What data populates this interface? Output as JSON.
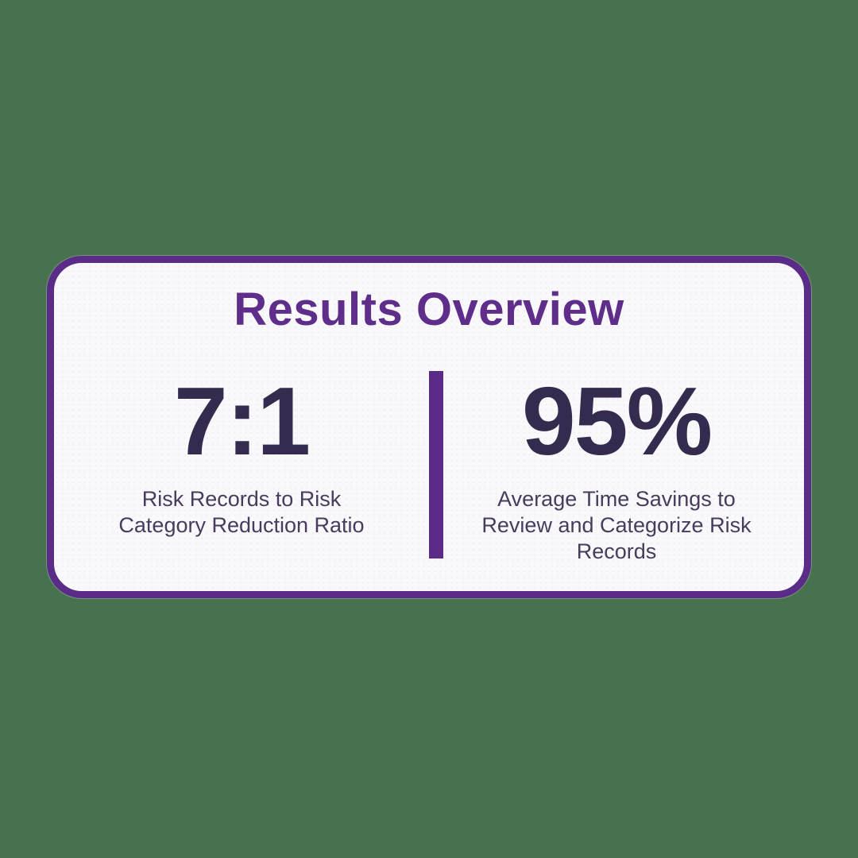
{
  "colors": {
    "bg-green": "#47714F",
    "purple": "#5B2C87",
    "title-purple": "#5F2E8A",
    "value-navy": "#342B4E",
    "label-navy": "#473C5C",
    "card-bg": "#F9F8FB"
  },
  "card": {
    "title": "Results Overview",
    "stats": [
      {
        "value": "7:1",
        "label": "Risk Records to Risk Category Reduction Ratio",
        "label_lines": [
          "Risk Records to Risk",
          "Category Reduction Ratio"
        ]
      },
      {
        "value": "95%",
        "label": "Average Time Savings to Review and Categorize Risk Records",
        "label_lines": [
          "Average Time Savings to",
          "Review and Categorize Risk",
          "Records"
        ]
      }
    ]
  },
  "chart_data": {
    "type": "table",
    "title": "Results Overview",
    "categories": [
      "Risk Records to Risk Category Reduction Ratio",
      "Average Time Savings to Review and Categorize Risk Records"
    ],
    "values": [
      "7:1",
      "95%"
    ],
    "notes": "KPI summary card with two headline metrics separated by a vertical divider"
  }
}
